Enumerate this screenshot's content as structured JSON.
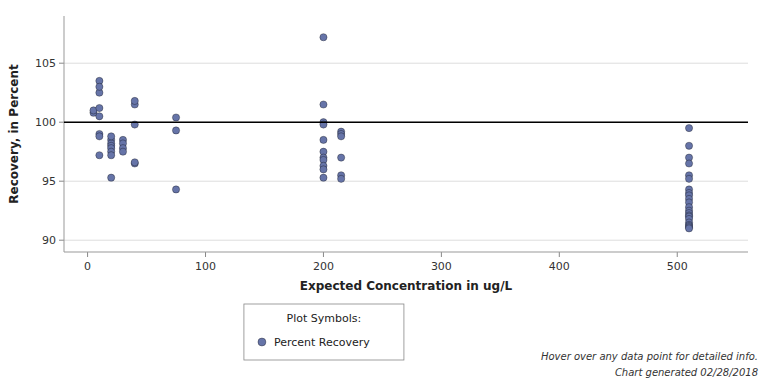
{
  "chart_data": {
    "type": "scatter",
    "xlabel": "Expected Concentration in ug/L",
    "ylabel": "Recovery, in Percent",
    "xlim": [
      -20,
      560
    ],
    "ylim": [
      89,
      109
    ],
    "xticks": [
      0,
      100,
      200,
      300,
      400,
      500
    ],
    "yticks": [
      90,
      95,
      100,
      105
    ],
    "grid": true,
    "legend": "bottom",
    "legend_title": "Plot Symbols:",
    "hline": 100,
    "annotations": [
      "Hover over any data point for detailed info.",
      "Chart generated 02/28/2018"
    ],
    "x": [
      5,
      5,
      10,
      10,
      10,
      10,
      10,
      10,
      10,
      10,
      20,
      20,
      20,
      20,
      20,
      20,
      20,
      20,
      30,
      30,
      30,
      30,
      40,
      40,
      40,
      40,
      40,
      75,
      75,
      75,
      200,
      200,
      200,
      200,
      200,
      200,
      200,
      200,
      200,
      200,
      200,
      215,
      215,
      215,
      215,
      215,
      215,
      510,
      510,
      510,
      510,
      510,
      510,
      510,
      510,
      510,
      510,
      510,
      510,
      510,
      510,
      510,
      510,
      510,
      510,
      510,
      510,
      510,
      510
    ],
    "series": [
      {
        "name": "Percent Recovery",
        "color": "#6674a8",
        "marker": "circle",
        "values": [
          100.8,
          101.0,
          99.0,
          100.5,
          101.2,
          103.5,
          102.5,
          103.0,
          98.8,
          97.2,
          98.5,
          98.2,
          98.0,
          97.8,
          97.5,
          97.2,
          98.8,
          95.3,
          98.5,
          98.2,
          97.8,
          97.5,
          101.5,
          101.8,
          99.8,
          96.5,
          96.6,
          100.4,
          99.3,
          94.3,
          107.2,
          101.5,
          100.0,
          99.8,
          98.5,
          97.5,
          97.0,
          96.8,
          96.3,
          96.0,
          95.3,
          99.2,
          99.0,
          98.8,
          97.0,
          95.5,
          95.2,
          99.5,
          98.0,
          97.0,
          96.5,
          95.5,
          95.2,
          94.3,
          94.0,
          93.8,
          93.5,
          93.2,
          92.8,
          92.5,
          92.3,
          92.1,
          92.0,
          91.8,
          91.5,
          91.3,
          91.2,
          91.1,
          91.0
        ]
      }
    ]
  }
}
